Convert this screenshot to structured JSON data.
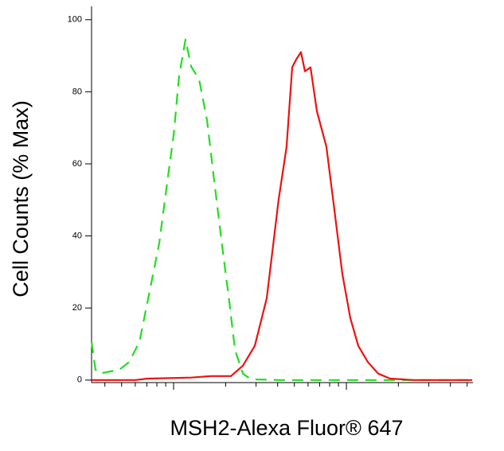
{
  "chart_data": {
    "type": "line",
    "y_label": "Cell Counts (% Max)",
    "x_label": "MSH2-Alexa Fluor® 647",
    "log_x": true,
    "xlim": [
      33.5,
      5345
    ],
    "xticks": [
      40,
      50,
      60,
      70,
      80,
      90,
      100,
      200,
      300,
      400,
      500,
      600,
      700,
      800,
      900,
      1000,
      2000,
      3000,
      4000,
      5000
    ],
    "ylim": [
      -0.7,
      103.7
    ],
    "yticks": [
      0,
      20,
      40,
      60,
      80,
      100
    ],
    "series": [
      {
        "color": "#22dd22",
        "dash": true,
        "x": [
          33.5,
          35.3,
          37.2,
          48.6,
          55.2,
          63.4,
          74.3,
          82.6,
          91.9,
          100,
          107.7,
          117.2,
          126.3,
          140.4,
          156.2,
          170,
          188.9,
          210.2,
          226.5,
          251.8,
          280,
          405.3,
          5345
        ],
        "values": [
          10.6,
          2.9,
          1.8,
          2.9,
          5,
          10.6,
          27,
          38,
          55,
          68,
          84.5,
          94.5,
          87,
          83.5,
          72,
          57,
          39,
          21.6,
          8.4,
          1.8,
          0.2,
          0,
          0
        ]
      },
      {
        "color": "#ee1111",
        "dash": false,
        "x": [
          33.5,
          60.1,
          70.5,
          126.3,
          164.7,
          214.8,
          251.8,
          295,
          345.9,
          405.3,
          450.5,
          485.7,
          512.5,
          546,
          575.4,
          620,
          675,
          767,
          853,
          948,
          1054,
          1172,
          1331,
          1528,
          1791,
          2464,
          5345
        ],
        "values": [
          0,
          0,
          0.4,
          0.7,
          1.1,
          1.1,
          4,
          9.5,
          22.7,
          50,
          64.7,
          86.8,
          89,
          91,
          85.7,
          86.8,
          74.6,
          64.7,
          47,
          29.4,
          17.2,
          9.5,
          5,
          1.8,
          0.4,
          0,
          0
        ]
      }
    ]
  }
}
